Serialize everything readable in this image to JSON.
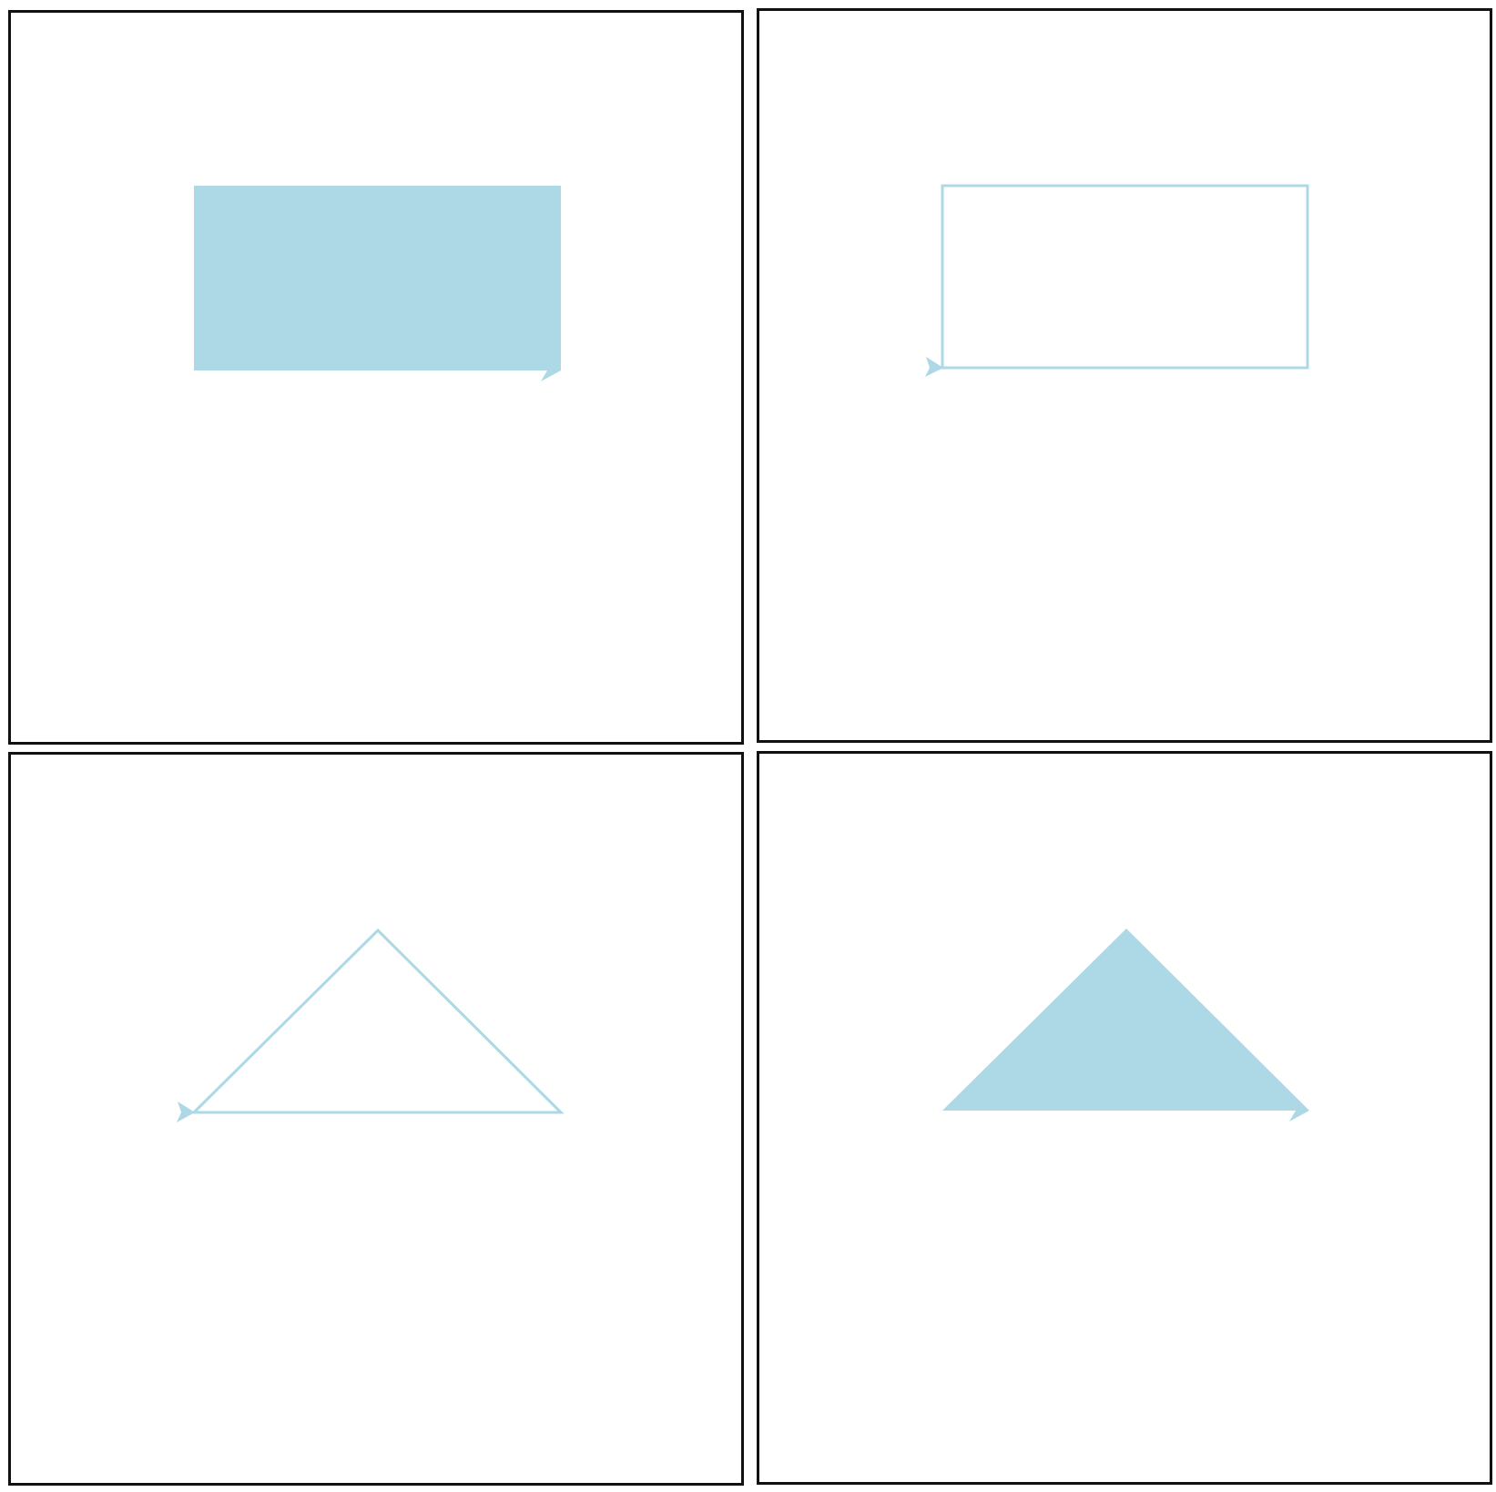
{
  "colors": {
    "shape": "#add8e6",
    "panel_border": "#111111",
    "background": "#ffffff"
  },
  "panels": [
    {
      "shape": "rectangle",
      "style": "filled",
      "arrow_marker": "end",
      "arrow_icon": "arrowhead-icon"
    },
    {
      "shape": "rectangle",
      "style": "outline",
      "arrow_marker": "start",
      "arrow_icon": "arrowhead-icon"
    },
    {
      "shape": "triangle",
      "style": "outline",
      "arrow_marker": "start",
      "arrow_icon": "arrowhead-icon"
    },
    {
      "shape": "triangle",
      "style": "filled",
      "arrow_marker": "end",
      "arrow_icon": "arrowhead-icon"
    }
  ]
}
